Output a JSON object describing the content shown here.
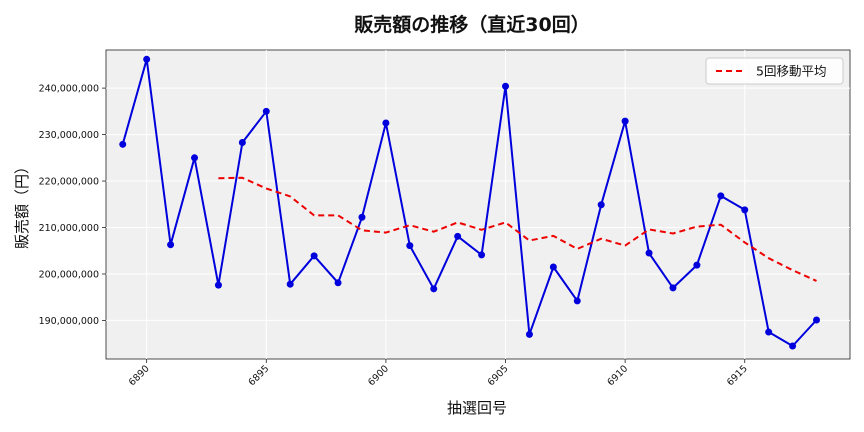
{
  "chart_data": {
    "type": "line",
    "title": "販売額の推移（直近30回）",
    "xlabel": "抽選回号",
    "ylabel": "販売額（円）",
    "x": [
      6889,
      6890,
      6891,
      6892,
      6893,
      6894,
      6895,
      6896,
      6897,
      6898,
      6899,
      6900,
      6901,
      6902,
      6903,
      6904,
      6905,
      6906,
      6907,
      6908,
      6909,
      6910,
      6911,
      6912,
      6913,
      6914,
      6915,
      6916,
      6917,
      6918
    ],
    "x_ticks": [
      6890,
      6895,
      6900,
      6905,
      6910,
      6915
    ],
    "xlim": [
      6888.3,
      6919.4
    ],
    "ylim": [
      181700000,
      248200000
    ],
    "y_ticks": [
      190000000,
      200000000,
      210000000,
      220000000,
      230000000,
      240000000
    ],
    "y_tick_labels": [
      "190,000,000",
      "200,000,000",
      "210,000,000",
      "220,000,000",
      "230,000,000",
      "240,000,000"
    ],
    "grid": true,
    "legend_position": "top-right",
    "series": [
      {
        "key": "sales",
        "color": "#0000dd",
        "style": "solid-markers",
        "values": [
          227900000,
          246200000,
          206300000,
          225000000,
          197600000,
          228300000,
          235000000,
          197800000,
          203900000,
          198100000,
          212200000,
          232500000,
          206100000,
          196800000,
          208100000,
          204100000,
          240400000,
          187000000,
          201500000,
          194200000,
          214900000,
          232900000,
          204500000,
          197000000,
          201900000,
          216800000,
          213800000,
          187500000,
          184500000,
          190100000
        ]
      },
      {
        "key": "ma5",
        "name": "5回移動平均",
        "color": "#ee0000",
        "style": "dashed",
        "values": [
          null,
          null,
          null,
          null,
          220600000,
          220700000,
          218400000,
          216700000,
          212600000,
          212600000,
          209400000,
          208900000,
          210500000,
          209100000,
          211100000,
          209500000,
          211100000,
          207200000,
          208200000,
          205400000,
          207600000,
          206100000,
          209600000,
          208700000,
          210200000,
          210600000,
          206800000,
          203400000,
          200800000,
          198500000
        ]
      }
    ]
  }
}
